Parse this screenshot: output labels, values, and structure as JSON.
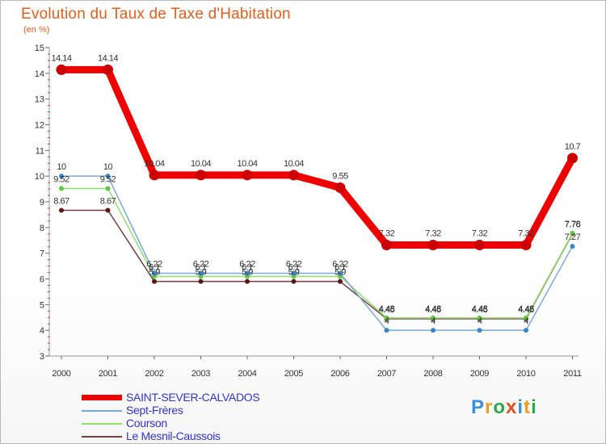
{
  "title": "Evolution du Taux de Taxe d'Habitation",
  "unit_label": "(en %)",
  "logo": {
    "letters": [
      "P",
      "r",
      "o",
      "x",
      "i",
      "t",
      "i"
    ],
    "colors": [
      "#3a8fd8",
      "#e8a020",
      "#2aa84a",
      "#e05020",
      "#3a8fd8",
      "#e8a020",
      "#2aa84a"
    ]
  },
  "chart_data": {
    "type": "line",
    "title": "Evolution du Taux de Taxe d'Habitation",
    "ylabel": "(en %)",
    "x": [
      "2000",
      "2001",
      "2002",
      "2003",
      "2004",
      "2005",
      "2006",
      "2007",
      "2008",
      "2009",
      "2010",
      "2011"
    ],
    "yticks": [
      "3",
      "4",
      "5",
      "6",
      "7",
      "8",
      "9",
      "10",
      "11",
      "12",
      "13",
      "14",
      "15"
    ],
    "ylim": [
      3,
      15
    ],
    "grid": false,
    "legend_position": "bottom-left",
    "series": [
      {
        "name": "SAINT-SEVER-CALVADOS",
        "color": "#ee0000",
        "point_color": "#b00000",
        "values": [
          14.14,
          14.14,
          10.04,
          10.04,
          10.04,
          10.04,
          9.55,
          7.32,
          7.32,
          7.32,
          7.32,
          10.7
        ],
        "labels": [
          "14.14",
          "14.14",
          "10.04",
          "10.04",
          "10.04",
          "10.04",
          "9.55",
          "7.32",
          "7.32",
          "7.32",
          "7.32",
          "10.7"
        ]
      },
      {
        "name": "Sept-Frères",
        "color": "#7aa8d8",
        "point_color": "#3a86c8",
        "values": [
          10,
          10,
          6.22,
          6.22,
          6.22,
          6.22,
          6.22,
          4,
          4,
          4,
          4,
          7.27
        ],
        "labels": [
          "10",
          "10",
          "6.22",
          "6.22",
          "6.22",
          "6.22",
          "6.22",
          "4",
          "4",
          "4",
          "4",
          "7.27"
        ]
      },
      {
        "name": "Courson",
        "color": "#90e070",
        "point_color": "#60c840",
        "values": [
          9.52,
          9.52,
          6.1,
          6.1,
          6.1,
          6.1,
          6.1,
          4.48,
          4.48,
          4.48,
          4.48,
          7.78
        ],
        "labels": [
          "9.52",
          "9.52",
          "6.1",
          "6.1",
          "6.1",
          "6.1",
          "6.1",
          "4.48",
          "4.48",
          "4.48",
          "4.48",
          "7.78"
        ]
      },
      {
        "name": "Le Mesnil-Caussois",
        "color": "#704040",
        "point_color": "#5a1818",
        "values": [
          8.67,
          8.67,
          5.9,
          5.9,
          5.9,
          5.9,
          5.9,
          4.45,
          4.45,
          4.45,
          4.45,
          7.76
        ],
        "labels": [
          "8.67",
          "8.67",
          "5.9",
          "5.9",
          "5.9",
          "5.9",
          "5.9",
          "4.45",
          "4.45",
          "4.45",
          "4.45",
          "7.76"
        ]
      }
    ]
  }
}
